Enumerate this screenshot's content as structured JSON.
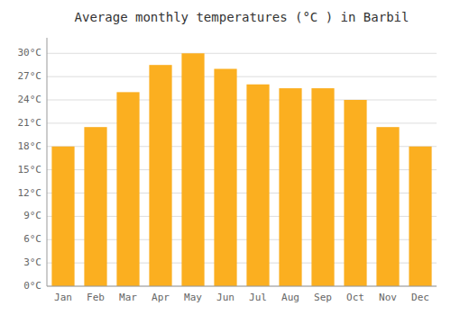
{
  "chart_data": {
    "type": "bar",
    "title": "Average monthly temperatures (°C ) in Barbil",
    "categories": [
      "Jan",
      "Feb",
      "Mar",
      "Apr",
      "May",
      "Jun",
      "Jul",
      "Aug",
      "Sep",
      "Oct",
      "Nov",
      "Dec"
    ],
    "values": [
      18,
      20.5,
      25,
      28.5,
      30,
      28,
      26,
      25.5,
      25.5,
      24,
      20.5,
      18
    ],
    "color": "#FBAF20",
    "ylim": [
      0,
      32
    ],
    "yticks": [
      {
        "value": 0,
        "label": "0°C"
      },
      {
        "value": 3,
        "label": "3°C"
      },
      {
        "value": 6,
        "label": "6°C"
      },
      {
        "value": 9,
        "label": "9°C"
      },
      {
        "value": 12,
        "label": "12°C"
      },
      {
        "value": 15,
        "label": "15°C"
      },
      {
        "value": 18,
        "label": "18°C"
      },
      {
        "value": 21,
        "label": "21°C"
      },
      {
        "value": 24,
        "label": "24°C"
      },
      {
        "value": 27,
        "label": "27°C"
      },
      {
        "value": 30,
        "label": "30°C"
      }
    ],
    "grid": true
  }
}
